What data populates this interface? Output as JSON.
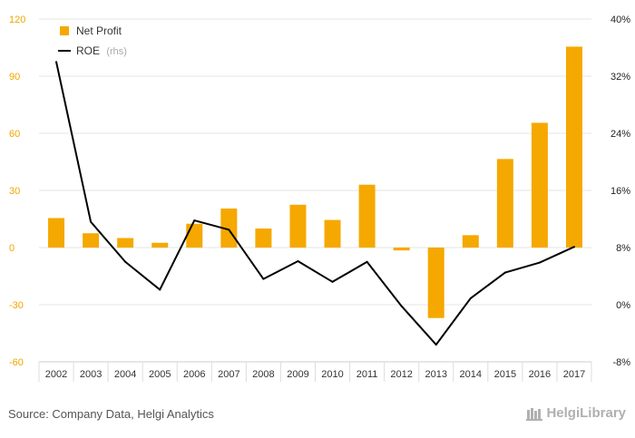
{
  "chart_data": {
    "type": "bar+line",
    "categories": [
      "2002",
      "2003",
      "2004",
      "2005",
      "2006",
      "2007",
      "2008",
      "2009",
      "2010",
      "2011",
      "2012",
      "2013",
      "2014",
      "2015",
      "2016",
      "2017"
    ],
    "series": [
      {
        "name": "Net Profit",
        "type": "bar",
        "axis": "left",
        "color": "#f5a800",
        "values": [
          15.5,
          7.5,
          5,
          2.5,
          12.5,
          20.5,
          10,
          22.5,
          14.5,
          33,
          -1.5,
          -37,
          6.5,
          46.5,
          65.5,
          105.5
        ]
      },
      {
        "name": "ROE",
        "name_suffix": "(rhs)",
        "type": "line",
        "axis": "right",
        "color": "#000000",
        "values": [
          34,
          11.6,
          6,
          2.1,
          11.8,
          10.5,
          3.6,
          6.1,
          3.2,
          6,
          -0.2,
          -5.6,
          0.9,
          4.5,
          5.9,
          8.1
        ]
      }
    ],
    "left_axis": {
      "ylim": [
        -60,
        120
      ],
      "ticks": [
        "-60",
        "-30",
        "0",
        "30",
        "60",
        "90",
        "120"
      ]
    },
    "right_axis": {
      "ylim": [
        -8,
        40
      ],
      "ticks": [
        "-8%",
        "0%",
        "8%",
        "16%",
        "24%",
        "32%",
        "40%"
      ]
    },
    "grid": "horizontal",
    "legend_position": "top-left"
  },
  "footer": {
    "source": "Source: Company Data, Helgi Analytics",
    "logo_text": "HelgiLibrary"
  }
}
